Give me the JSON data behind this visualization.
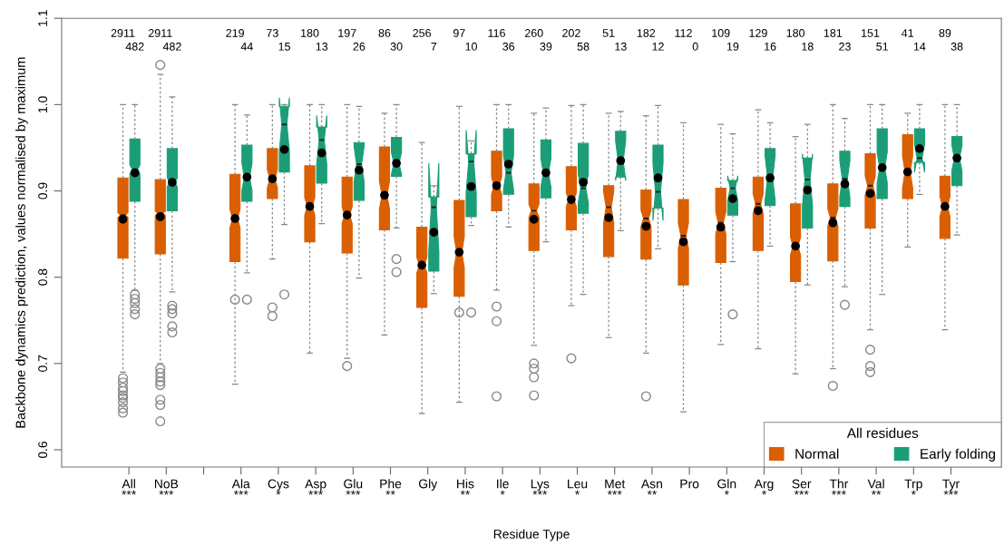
{
  "chart_data": {
    "type": "box",
    "ylabel": "Backbone dynamics prediction, values normalised by maximum",
    "xlabel": "Residue Type",
    "legend_title": "All residues",
    "legend": "bottom right",
    "grid": false,
    "categories": [
      "All\n***",
      "NoB\n***",
      null,
      "Ala\n***",
      "Cys\n*",
      "Asp\n***",
      "Glu\n***",
      "Phe\n**",
      "Gly",
      "His\n**",
      "Ile\n*",
      "Lys\n***",
      "Leu\n*",
      "Met\n***",
      "Asn\n**",
      "Pro",
      "Gln\n*",
      "Arg\n*",
      "Ser\n***",
      "Thr\n***",
      "Val\n**",
      "Trp\n*",
      "Tyr\n***"
    ],
    "ylim": [
      0.58,
      1.1
    ],
    "yticks": [
      0.6,
      0.7,
      0.8,
      0.9,
      {
        "value": 1,
        "label": "1.0"
      },
      1.1
    ],
    "series": [
      {
        "name": "Normal",
        "color": "#d95f02",
        "value_labels": [
          "2911",
          "2911",
          null,
          "219",
          "73",
          "180",
          "197",
          "86",
          "256",
          "97",
          "116",
          "260",
          "202",
          "51",
          "182",
          "112",
          "109",
          "129",
          "180",
          "181",
          "151",
          "41",
          "89"
        ],
        "boxes": [
          {
            "low": 0.69,
            "q1": 0.822,
            "median": 0.872,
            "q3": 0.915,
            "high": 1.0,
            "mean": 0.867,
            "outliers": [
              0.683,
              0.678,
              0.672,
              0.668,
              0.663,
              0.66,
              0.655,
              0.648,
              0.643
            ]
          },
          {
            "low": 0.7,
            "q1": 0.827,
            "median": 0.874,
            "q3": 0.913,
            "high": 1.035,
            "mean": 0.87,
            "outliers": [
              1.046,
              0.694,
              0.689,
              0.684,
              0.679,
              0.675,
              0.658,
              0.652,
              0.633
            ]
          },
          null,
          {
            "low": 0.676,
            "q1": 0.818,
            "median": 0.868,
            "q3": 0.919,
            "high": 1.0,
            "mean": 0.868,
            "outliers": [
              0.774
            ]
          },
          {
            "low": 0.821,
            "q1": 0.891,
            "median": 0.914,
            "q3": 0.949,
            "high": 1.0,
            "mean": 0.914,
            "outliers": [
              0.765,
              0.755
            ]
          },
          {
            "low": 0.712,
            "q1": 0.841,
            "median": 0.882,
            "q3": 0.929,
            "high": 1.0,
            "mean": 0.882
          },
          {
            "low": 0.706,
            "q1": 0.828,
            "median": 0.872,
            "q3": 0.916,
            "high": 1.0,
            "mean": 0.872,
            "outliers": [
              0.697
            ]
          },
          {
            "low": 0.733,
            "q1": 0.855,
            "median": 0.895,
            "q3": 0.951,
            "high": 0.99,
            "mean": 0.895
          },
          {
            "low": 0.642,
            "q1": 0.765,
            "median": 0.814,
            "q3": 0.858,
            "high": 0.956,
            "mean": 0.814
          },
          {
            "low": 0.655,
            "q1": 0.778,
            "median": 0.829,
            "q3": 0.889,
            "high": 0.998,
            "mean": 0.829,
            "outliers": [
              0.759
            ]
          },
          {
            "low": 0.785,
            "q1": 0.877,
            "median": 0.906,
            "q3": 0.946,
            "high": 1.0,
            "mean": 0.906,
            "outliers": [
              0.766,
              0.749,
              0.662
            ]
          },
          {
            "low": 0.721,
            "q1": 0.831,
            "median": 0.877,
            "q3": 0.908,
            "high": 0.99,
            "mean": 0.867,
            "outliers": [
              0.7,
              0.694,
              0.684,
              0.663
            ]
          },
          {
            "low": 0.767,
            "q1": 0.855,
            "median": 0.89,
            "q3": 0.928,
            "high": 0.999,
            "mean": 0.89,
            "outliers": [
              0.706
            ]
          },
          {
            "low": 0.73,
            "q1": 0.824,
            "median": 0.881,
            "q3": 0.906,
            "high": 0.99,
            "mean": 0.869
          },
          {
            "low": 0.712,
            "q1": 0.821,
            "median": 0.868,
            "q3": 0.901,
            "high": 0.987,
            "mean": 0.859,
            "outliers": [
              0.662
            ]
          },
          {
            "low": 0.644,
            "q1": 0.791,
            "median": 0.848,
            "q3": 0.89,
            "high": 0.979,
            "mean": 0.841
          },
          {
            "low": 0.722,
            "q1": 0.817,
            "median": 0.863,
            "q3": 0.903,
            "high": 0.977,
            "mean": 0.858
          },
          {
            "low": 0.717,
            "q1": 0.831,
            "median": 0.885,
            "q3": 0.916,
            "high": 0.994,
            "mean": 0.877
          },
          {
            "low": 0.688,
            "q1": 0.795,
            "median": 0.836,
            "q3": 0.885,
            "high": 0.963,
            "mean": 0.836
          },
          {
            "low": 0.694,
            "q1": 0.819,
            "median": 0.869,
            "q3": 0.908,
            "high": 1.0,
            "mean": 0.863,
            "outliers": [
              0.674
            ]
          },
          {
            "low": 0.739,
            "q1": 0.857,
            "median": 0.906,
            "q3": 0.943,
            "high": 1.0,
            "mean": 0.897,
            "outliers": [
              0.716,
              0.697,
              0.69
            ]
          },
          {
            "low": 0.835,
            "q1": 0.891,
            "median": 0.922,
            "q3": 0.965,
            "high": 0.99,
            "mean": 0.922
          },
          {
            "low": 0.739,
            "q1": 0.845,
            "median": 0.882,
            "q3": 0.917,
            "high": 1.0,
            "mean": 0.882
          }
        ]
      },
      {
        "name": "Early folding",
        "color": "#1b9e77",
        "value_labels": [
          "482",
          "482",
          null,
          "44",
          "15",
          "13",
          "26",
          "30",
          "7",
          "10",
          "36",
          "39",
          "58",
          "13",
          "12",
          "0",
          "19",
          "16",
          "18",
          "23",
          "51",
          "14",
          "38"
        ],
        "boxes": [
          {
            "low": 0.785,
            "q1": 0.888,
            "median": 0.925,
            "q3": 0.96,
            "high": 1.0,
            "mean": 0.921,
            "outliers": [
              0.78,
              0.775,
              0.77,
              0.763,
              0.757
            ]
          },
          {
            "low": 0.783,
            "q1": 0.877,
            "median": 0.91,
            "q3": 0.949,
            "high": 1.009,
            "mean": 0.91,
            "outliers": [
              0.767,
              0.763,
              0.758,
              0.743,
              0.736
            ]
          },
          null,
          {
            "low": 0.805,
            "q1": 0.888,
            "median": 0.916,
            "q3": 0.953,
            "high": 0.988,
            "mean": 0.916,
            "outliers": [
              0.774
            ]
          },
          {
            "low": 0.861,
            "q1": 0.922,
            "median": 0.977,
            "q3": 0.998,
            "high": 1.0,
            "mean": 0.948,
            "outliers": [
              0.78
            ]
          },
          {
            "low": 0.862,
            "q1": 0.909,
            "median": 0.959,
            "q3": 0.974,
            "high": 1.0,
            "mean": 0.944
          },
          {
            "low": 0.799,
            "q1": 0.889,
            "median": 0.931,
            "q3": 0.956,
            "high": 0.998,
            "mean": 0.924
          },
          {
            "low": 0.857,
            "q1": 0.917,
            "median": 0.932,
            "q3": 0.962,
            "high": 1.0,
            "mean": 0.932,
            "outliers": [
              0.821,
              0.806
            ]
          },
          {
            "low": 0.781,
            "q1": 0.807,
            "median": 0.881,
            "q3": 0.893,
            "high": 0.906,
            "mean": 0.852
          },
          {
            "low": 0.86,
            "q1": 0.87,
            "median": 0.934,
            "q3": 0.943,
            "high": 0.958,
            "mean": 0.905,
            "outliers": [
              0.759
            ]
          },
          {
            "low": 0.858,
            "q1": 0.896,
            "median": 0.921,
            "q3": 0.972,
            "high": 1.0,
            "mean": 0.931
          },
          {
            "low": 0.841,
            "q1": 0.892,
            "median": 0.921,
            "q3": 0.959,
            "high": 0.996,
            "mean": 0.921
          },
          {
            "low": 0.78,
            "q1": 0.874,
            "median": 0.903,
            "q3": 0.955,
            "high": 1.0,
            "mean": 0.91
          },
          {
            "low": 0.854,
            "q1": 0.916,
            "median": 0.935,
            "q3": 0.969,
            "high": 0.992,
            "mean": 0.935
          },
          {
            "low": 0.833,
            "q1": 0.88,
            "median": 0.899,
            "q3": 0.953,
            "high": 0.999,
            "mean": 0.915
          },
          null,
          {
            "low": 0.818,
            "q1": 0.872,
            "median": 0.903,
            "q3": 0.912,
            "high": 0.966,
            "mean": 0.891,
            "outliers": [
              0.757
            ]
          },
          {
            "low": 0.836,
            "q1": 0.883,
            "median": 0.915,
            "q3": 0.949,
            "high": 0.979,
            "mean": 0.915
          },
          {
            "low": 0.791,
            "q1": 0.857,
            "median": 0.913,
            "q3": 0.938,
            "high": 0.977,
            "mean": 0.901
          },
          {
            "low": 0.789,
            "q1": 0.882,
            "median": 0.914,
            "q3": 0.946,
            "high": 0.984,
            "mean": 0.908,
            "outliers": [
              0.768
            ]
          },
          {
            "low": 0.78,
            "q1": 0.891,
            "median": 0.927,
            "q3": 0.972,
            "high": 1.0,
            "mean": 0.927
          },
          {
            "low": 0.896,
            "q1": 0.933,
            "median": 0.938,
            "q3": 0.972,
            "high": 1.0,
            "mean": 0.949
          },
          {
            "low": 0.849,
            "q1": 0.906,
            "median": 0.938,
            "q3": 0.963,
            "high": 1.0,
            "mean": 0.938
          }
        ]
      }
    ]
  }
}
